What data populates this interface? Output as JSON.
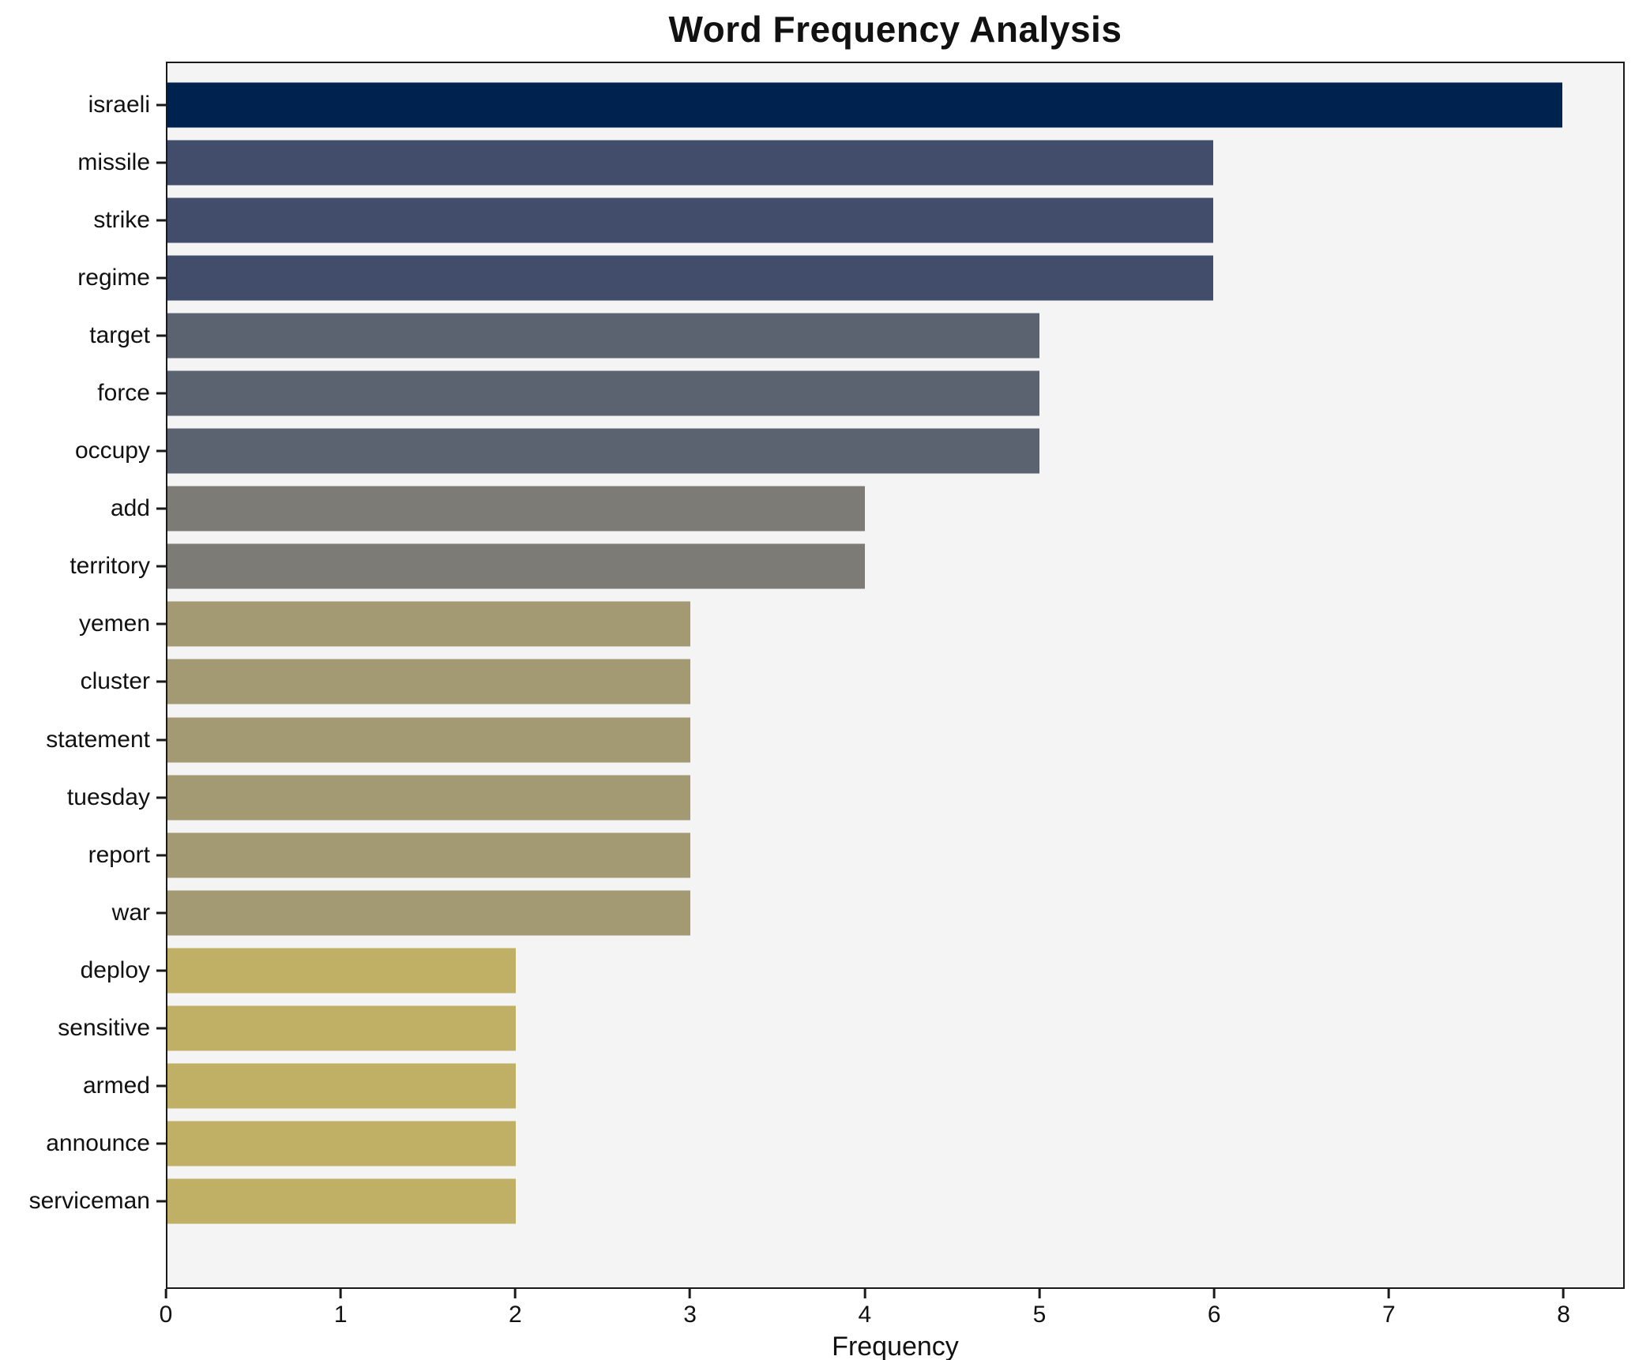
{
  "chart_data": {
    "type": "bar",
    "orientation": "horizontal",
    "title": "Word Frequency Analysis",
    "xlabel": "Frequency",
    "ylabel": "",
    "xlim": [
      0,
      8.35
    ],
    "xticks": [
      0,
      1,
      2,
      3,
      4,
      5,
      6,
      7,
      8
    ],
    "grid": false,
    "legend": "none",
    "plot_background": "#f4f4f5",
    "axis_color": "#1a1a1a",
    "categories": [
      "israeli",
      "missile",
      "strike",
      "regime",
      "target",
      "force",
      "occupy",
      "add",
      "territory",
      "yemen",
      "cluster",
      "statement",
      "tuesday",
      "report",
      "war",
      "deploy",
      "sensitive",
      "armed",
      "announce",
      "serviceman"
    ],
    "values": [
      8,
      6,
      6,
      6,
      5,
      5,
      5,
      4,
      4,
      3,
      3,
      3,
      3,
      3,
      3,
      2,
      2,
      2,
      2,
      2
    ],
    "bar_colors": [
      "#00224e",
      "#414d6b",
      "#414d6b",
      "#414d6b",
      "#5c6370",
      "#5c6370",
      "#5c6370",
      "#7d7b76",
      "#7d7b76",
      "#a39a74",
      "#a39a74",
      "#a39a74",
      "#a39a74",
      "#a39a74",
      "#a39a74",
      "#bfb066",
      "#bfb066",
      "#bfb066",
      "#bfb066",
      "#bfb066"
    ]
  }
}
